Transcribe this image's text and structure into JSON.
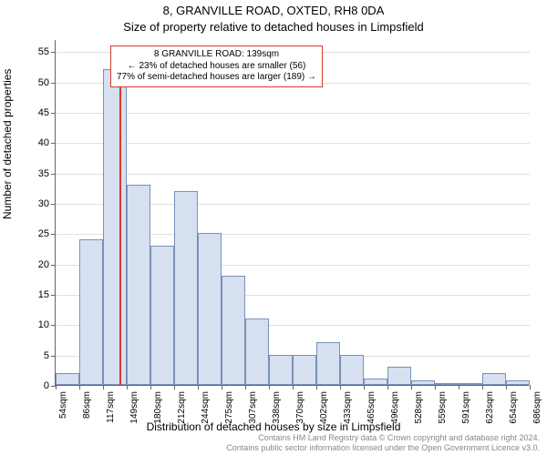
{
  "chart": {
    "type": "histogram",
    "title_line1": "8, GRANVILLE ROAD, OXTED, RH8 0DA",
    "title_line2": "Size of property relative to detached houses in Limpsfield",
    "yaxis_label": "Number of detached properties",
    "xaxis_label": "Distribution of detached houses by size in Limpsfield",
    "background_color": "#ffffff",
    "grid_color": "#e0e0e0",
    "axis_color": "#666666",
    "bar_fill": "#d6e0f0",
    "bar_border": "#7a90b8",
    "marker_color": "#d43a2a",
    "ylim": [
      0,
      57
    ],
    "yticks": [
      0,
      5,
      10,
      15,
      20,
      25,
      30,
      35,
      40,
      45,
      50,
      55
    ],
    "xticks": [
      "54sqm",
      "86sqm",
      "117sqm",
      "149sqm",
      "180sqm",
      "212sqm",
      "244sqm",
      "275sqm",
      "307sqm",
      "338sqm",
      "370sqm",
      "402sqm",
      "433sqm",
      "465sqm",
      "496sqm",
      "528sqm",
      "559sqm",
      "591sqm",
      "623sqm",
      "654sqm",
      "686sqm"
    ],
    "values": [
      2,
      24,
      52,
      33,
      23,
      32,
      25,
      18,
      11,
      5,
      5,
      7,
      5,
      1,
      3,
      0.8,
      0,
      0,
      2,
      0.8
    ],
    "marker_bin_index": 2,
    "marker_fraction_in_bin": 0.7,
    "annotation": {
      "line1": "8 GRANVILLE ROAD: 139sqm",
      "line2": "← 23% of detached houses are smaller (56)",
      "line3": "77% of semi-detached houses are larger (189) →"
    },
    "footer_line1": "Contains HM Land Registry data © Crown copyright and database right 2024.",
    "footer_line2": "Contains public sector information licensed under the Open Government Licence v3.0."
  }
}
